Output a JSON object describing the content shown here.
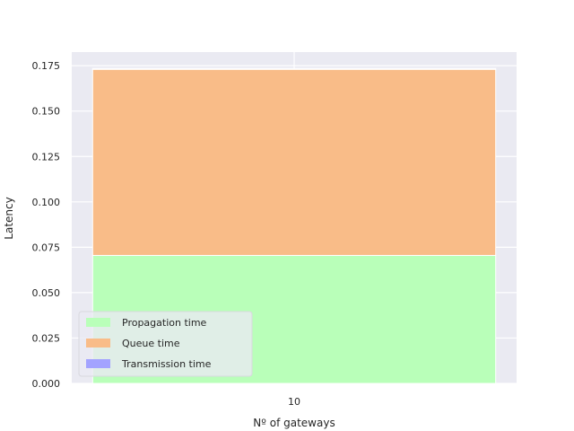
{
  "chart_data": {
    "type": "bar",
    "stacked": true,
    "categories": [
      "10"
    ],
    "series": [
      {
        "name": "Propagation time",
        "values": [
          0.0705
        ],
        "color": "#b9ffb9"
      },
      {
        "name": "Queue time",
        "values": [
          0.1025
        ],
        "color": "#f9bc88"
      },
      {
        "name": "Transmission time",
        "values": [
          0.0005
        ],
        "color": "#a3a3ff"
      }
    ],
    "xlabel": "Nº of gateways",
    "ylabel": "Latency",
    "ylim": [
      0,
      0.1825
    ],
    "yticks": [
      "0.000",
      "0.025",
      "0.050",
      "0.075",
      "0.100",
      "0.125",
      "0.150",
      "0.175"
    ],
    "grid": true,
    "legend_position": "lower-left",
    "plot_background": "#eaeaf2"
  }
}
